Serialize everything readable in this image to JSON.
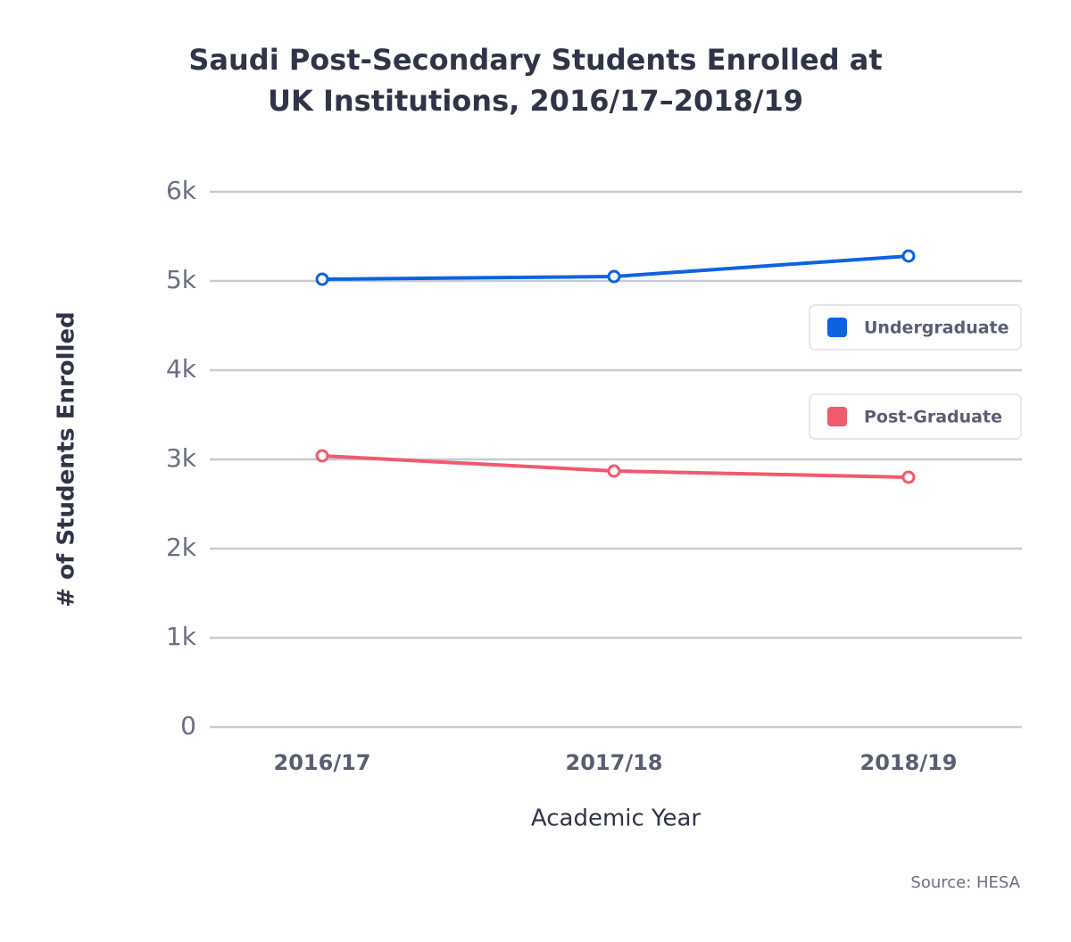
{
  "chart_data": {
    "type": "line",
    "title": "Saudi Post-Secondary Students Enrolled at UK Institutions, 2016/17–2018/19",
    "x_label": "Academic Year",
    "y_label": "# of Students Enrolled",
    "source": "Source: HESA",
    "categories": [
      "2016/17",
      "2017/18",
      "2018/19"
    ],
    "series": [
      {
        "name": "Undergraduate",
        "color": "#0b63e0",
        "values": [
          5020,
          5050,
          5280
        ]
      },
      {
        "name": "Post-Graduate",
        "color": "#f05a6e",
        "values": [
          3040,
          2870,
          2800
        ]
      }
    ],
    "ylim": [
      0,
      6000
    ],
    "yticks": [
      0,
      {
        "value": 1000,
        "label": "1k"
      },
      {
        "value": 2000,
        "label": "2k"
      },
      {
        "value": 3000,
        "label": "3k"
      },
      {
        "value": 4000,
        "label": "4k"
      },
      {
        "value": 5000,
        "label": "5k"
      },
      {
        "value": 6000,
        "label": "6k"
      }
    ],
    "grid": true,
    "legend": "right"
  }
}
